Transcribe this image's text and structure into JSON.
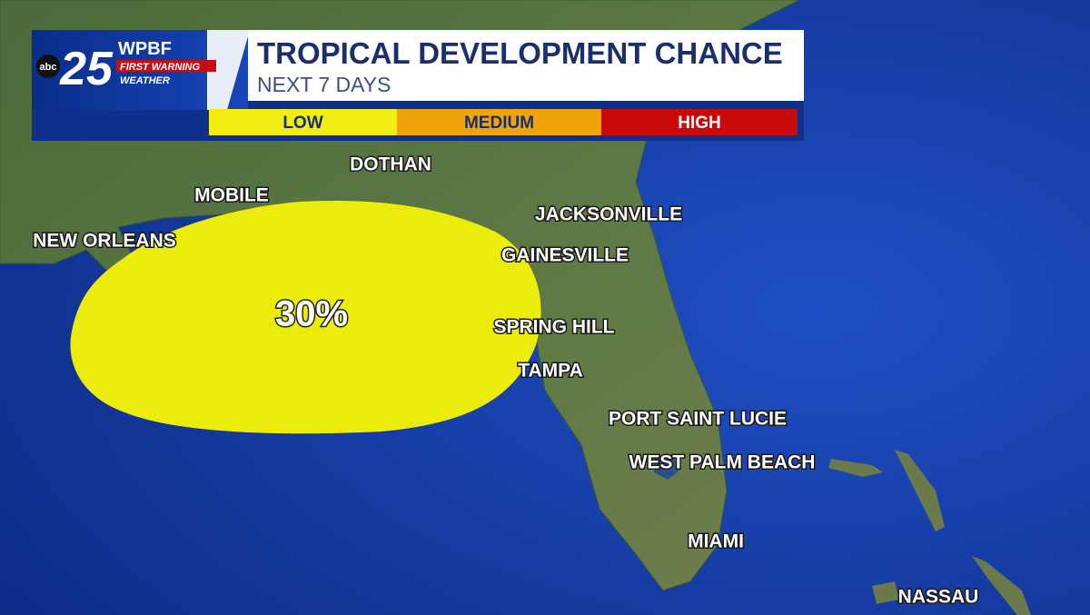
{
  "header": {
    "title": "TROPICAL DEVELOPMENT CHANCE",
    "subtitle": "NEXT 7 DAYS"
  },
  "logo": {
    "network": "abc",
    "channel": "25",
    "station": "WPBF",
    "tagline_1": "FIRST WARNING",
    "tagline_2": "WEATHER"
  },
  "legend": [
    {
      "label": "LOW",
      "color": "#f2ee12"
    },
    {
      "label": "MEDIUM",
      "color": "#f0a30a"
    },
    {
      "label": "HIGH",
      "color": "#c90a0a"
    }
  ],
  "outlook": {
    "label": "30%",
    "color": "#ecec0c"
  },
  "cities": [
    "DOTHAN",
    "MOBILE",
    "NEW ORLEANS",
    "JACKSONVILLE",
    "GAINESVILLE",
    "SPRING HILL",
    "TAMPA",
    "PORT SAINT LUCIE",
    "WEST PALM BEACH",
    "MIAMI",
    "NASSAU"
  ]
}
